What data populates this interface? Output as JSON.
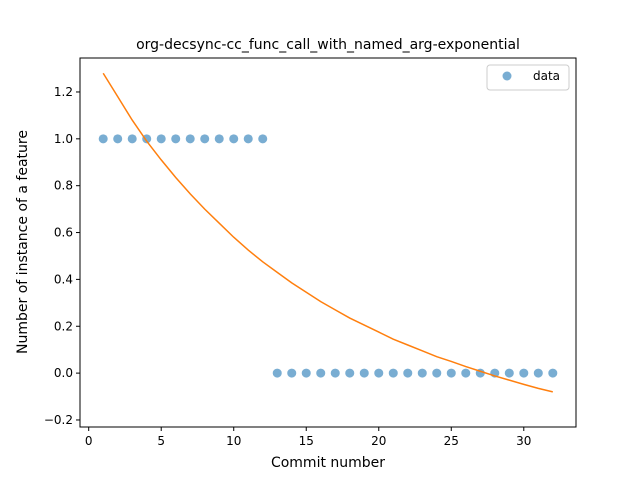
{
  "chart_data": {
    "type": "scatter",
    "title": "org-decsync-cc_func_call_with_named_arg-exponential",
    "xlabel": "Commit number",
    "ylabel": "Number of instance of a feature",
    "xlim": [
      -0.6,
      33.6
    ],
    "ylim": [
      -0.23,
      1.345
    ],
    "xticks": [
      {
        "value": 0,
        "label": "0"
      },
      {
        "value": 5,
        "label": "5"
      },
      {
        "value": 10,
        "label": "10"
      },
      {
        "value": 15,
        "label": "15"
      },
      {
        "value": 20,
        "label": "20"
      },
      {
        "value": 25,
        "label": "25"
      },
      {
        "value": 30,
        "label": "30"
      }
    ],
    "yticks": [
      {
        "value": -0.2,
        "label": "−0.2"
      },
      {
        "value": 0.0,
        "label": "0.0"
      },
      {
        "value": 0.2,
        "label": "0.2"
      },
      {
        "value": 0.4,
        "label": "0.4"
      },
      {
        "value": 0.6,
        "label": "0.6"
      },
      {
        "value": 0.8,
        "label": "0.8"
      },
      {
        "value": 1.0,
        "label": "1.0"
      },
      {
        "value": 1.2,
        "label": "1.2"
      }
    ],
    "grid": false,
    "legend": {
      "position": "top-right"
    },
    "series": [
      {
        "name": "data",
        "kind": "scatter",
        "color": "#1f77b4",
        "alpha": 0.6,
        "points": [
          [
            1,
            1
          ],
          [
            2,
            1
          ],
          [
            3,
            1
          ],
          [
            4,
            1
          ],
          [
            5,
            1
          ],
          [
            6,
            1
          ],
          [
            7,
            1
          ],
          [
            8,
            1
          ],
          [
            9,
            1
          ],
          [
            10,
            1
          ],
          [
            11,
            1
          ],
          [
            12,
            1
          ],
          [
            13,
            0
          ],
          [
            14,
            0
          ],
          [
            15,
            0
          ],
          [
            16,
            0
          ],
          [
            17,
            0
          ],
          [
            18,
            0
          ],
          [
            19,
            0
          ],
          [
            20,
            0
          ],
          [
            21,
            0
          ],
          [
            22,
            0
          ],
          [
            23,
            0
          ],
          [
            24,
            0
          ],
          [
            25,
            0
          ],
          [
            26,
            0
          ],
          [
            27,
            0
          ],
          [
            28,
            0
          ],
          [
            29,
            0
          ],
          [
            30,
            0
          ],
          [
            31,
            0
          ],
          [
            32,
            0
          ]
        ]
      },
      {
        "kind": "line",
        "color": "#ff7f0e",
        "points": [
          [
            1,
            1.28
          ],
          [
            2,
            1.18
          ],
          [
            3,
            1.08
          ],
          [
            4,
            0.99
          ],
          [
            5,
            0.91
          ],
          [
            6,
            0.835
          ],
          [
            7,
            0.765
          ],
          [
            8,
            0.7
          ],
          [
            9,
            0.64
          ],
          [
            10,
            0.58
          ],
          [
            11,
            0.525
          ],
          [
            12,
            0.475
          ],
          [
            13,
            0.43
          ],
          [
            14,
            0.385
          ],
          [
            15,
            0.345
          ],
          [
            16,
            0.305
          ],
          [
            17,
            0.27
          ],
          [
            18,
            0.235
          ],
          [
            19,
            0.205
          ],
          [
            20,
            0.175
          ],
          [
            21,
            0.145
          ],
          [
            22,
            0.12
          ],
          [
            23,
            0.095
          ],
          [
            24,
            0.07
          ],
          [
            25,
            0.05
          ],
          [
            26,
            0.028
          ],
          [
            27,
            0.008
          ],
          [
            28,
            -0.012
          ],
          [
            29,
            -0.03
          ],
          [
            30,
            -0.048
          ],
          [
            31,
            -0.065
          ],
          [
            32,
            -0.08
          ]
        ]
      }
    ]
  }
}
